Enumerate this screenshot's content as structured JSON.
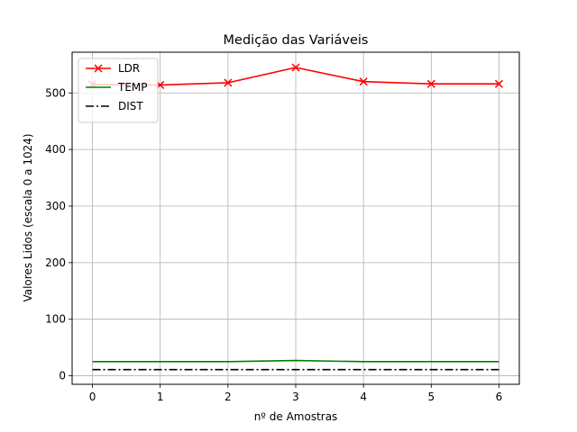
{
  "chart_data": {
    "type": "line",
    "title": "Medição das Variáveis",
    "xlabel": "nº de Amostras",
    "ylabel": "Valores Lidos (escala 0 a 1024)",
    "x": [
      0,
      1,
      2,
      3,
      4,
      5,
      6
    ],
    "xlim": [
      -0.3,
      6.3
    ],
    "ylim": [
      -15,
      572
    ],
    "xticks": [
      0,
      1,
      2,
      3,
      4,
      5,
      6
    ],
    "yticks": [
      0,
      100,
      200,
      300,
      400,
      500
    ],
    "grid": true,
    "legend_position": "top-left",
    "series": [
      {
        "name": "LDR",
        "values": [
          515,
          514,
          518,
          545,
          520,
          516,
          516
        ],
        "color": "#ff0000",
        "marker": "x",
        "linestyle": "solid"
      },
      {
        "name": "TEMP",
        "values": [
          25,
          25,
          25,
          27,
          25,
          25,
          25
        ],
        "color": "#008000",
        "marker": "none",
        "linestyle": "solid"
      },
      {
        "name": "DIST",
        "values": [
          11,
          11,
          11,
          11,
          11,
          11,
          11
        ],
        "color": "#000000",
        "marker": "none",
        "linestyle": "dashdot"
      }
    ]
  }
}
